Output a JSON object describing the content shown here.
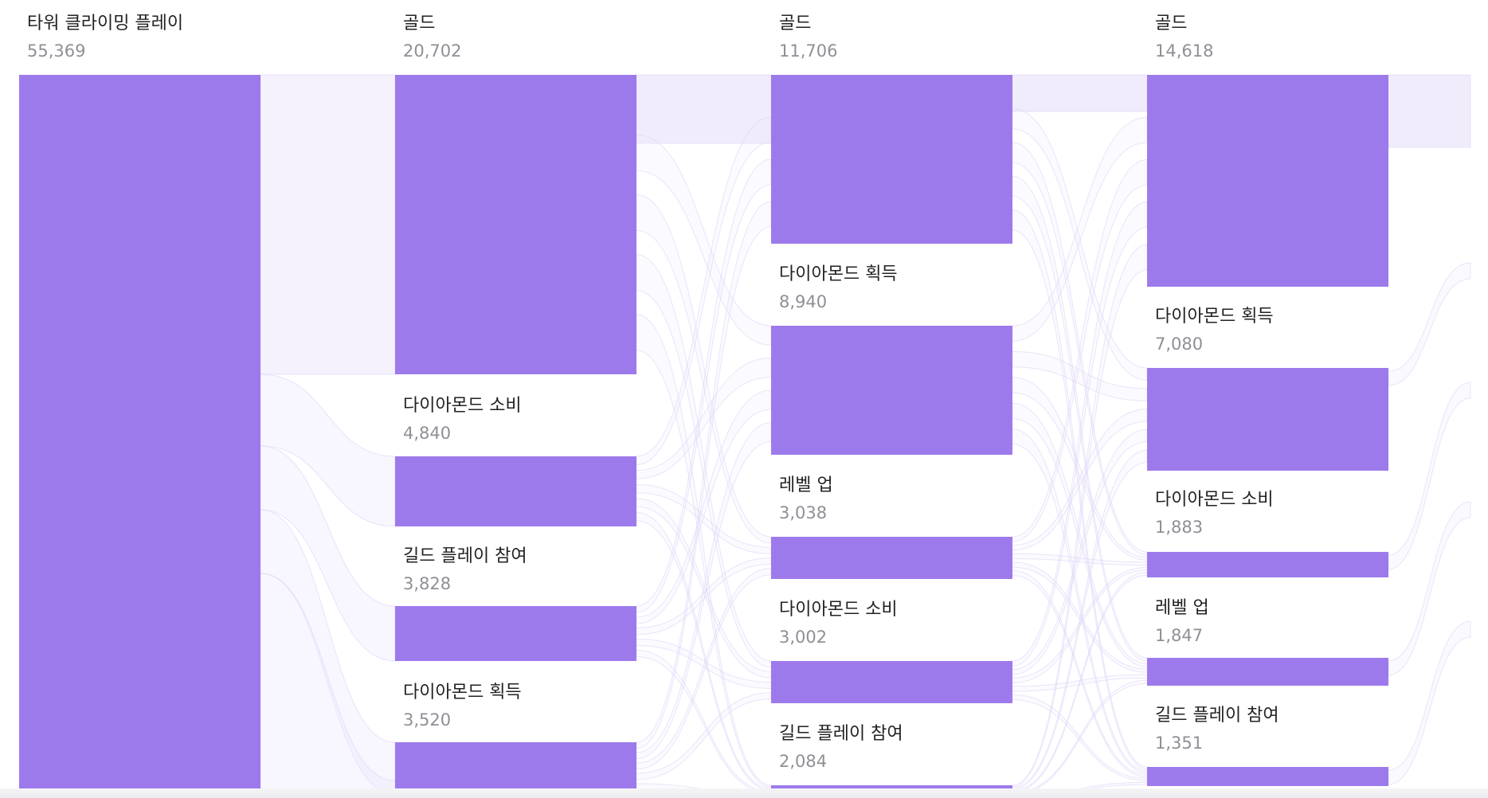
{
  "colors": {
    "node": "#9d7aec",
    "link": "#ece6fb",
    "link_stroke": "#ddd3f7",
    "name": "#222222",
    "count": "#8f8f96"
  },
  "columns": [
    {
      "steps": [
        {
          "name": "타워 클라이밍 플레이",
          "count": "55,369"
        }
      ]
    },
    {
      "steps": [
        {
          "name": "골드",
          "count": "20,702"
        },
        {
          "name": "다이아몬드 소비",
          "count": "4,840"
        },
        {
          "name": "길드 플레이 참여",
          "count": "3,828"
        },
        {
          "name": "다이아몬드 획득",
          "count": "3,520"
        }
      ]
    },
    {
      "steps": [
        {
          "name": "골드",
          "count": "11,706"
        },
        {
          "name": "다이아몬드 획득",
          "count": "8,940"
        },
        {
          "name": "레벨 업",
          "count": "3,038"
        },
        {
          "name": "다이아몬드 소비",
          "count": "3,002"
        },
        {
          "name": "길드 플레이 참여",
          "count": "2,084"
        }
      ]
    },
    {
      "steps": [
        {
          "name": "골드",
          "count": "14,618"
        },
        {
          "name": "다이아몬드 획득",
          "count": "7,080"
        },
        {
          "name": "다이아몬드 소비",
          "count": "1,883"
        },
        {
          "name": "레벨 업",
          "count": "1,847"
        },
        {
          "name": "길드 플레이 참여",
          "count": "1,351"
        }
      ]
    }
  ]
}
